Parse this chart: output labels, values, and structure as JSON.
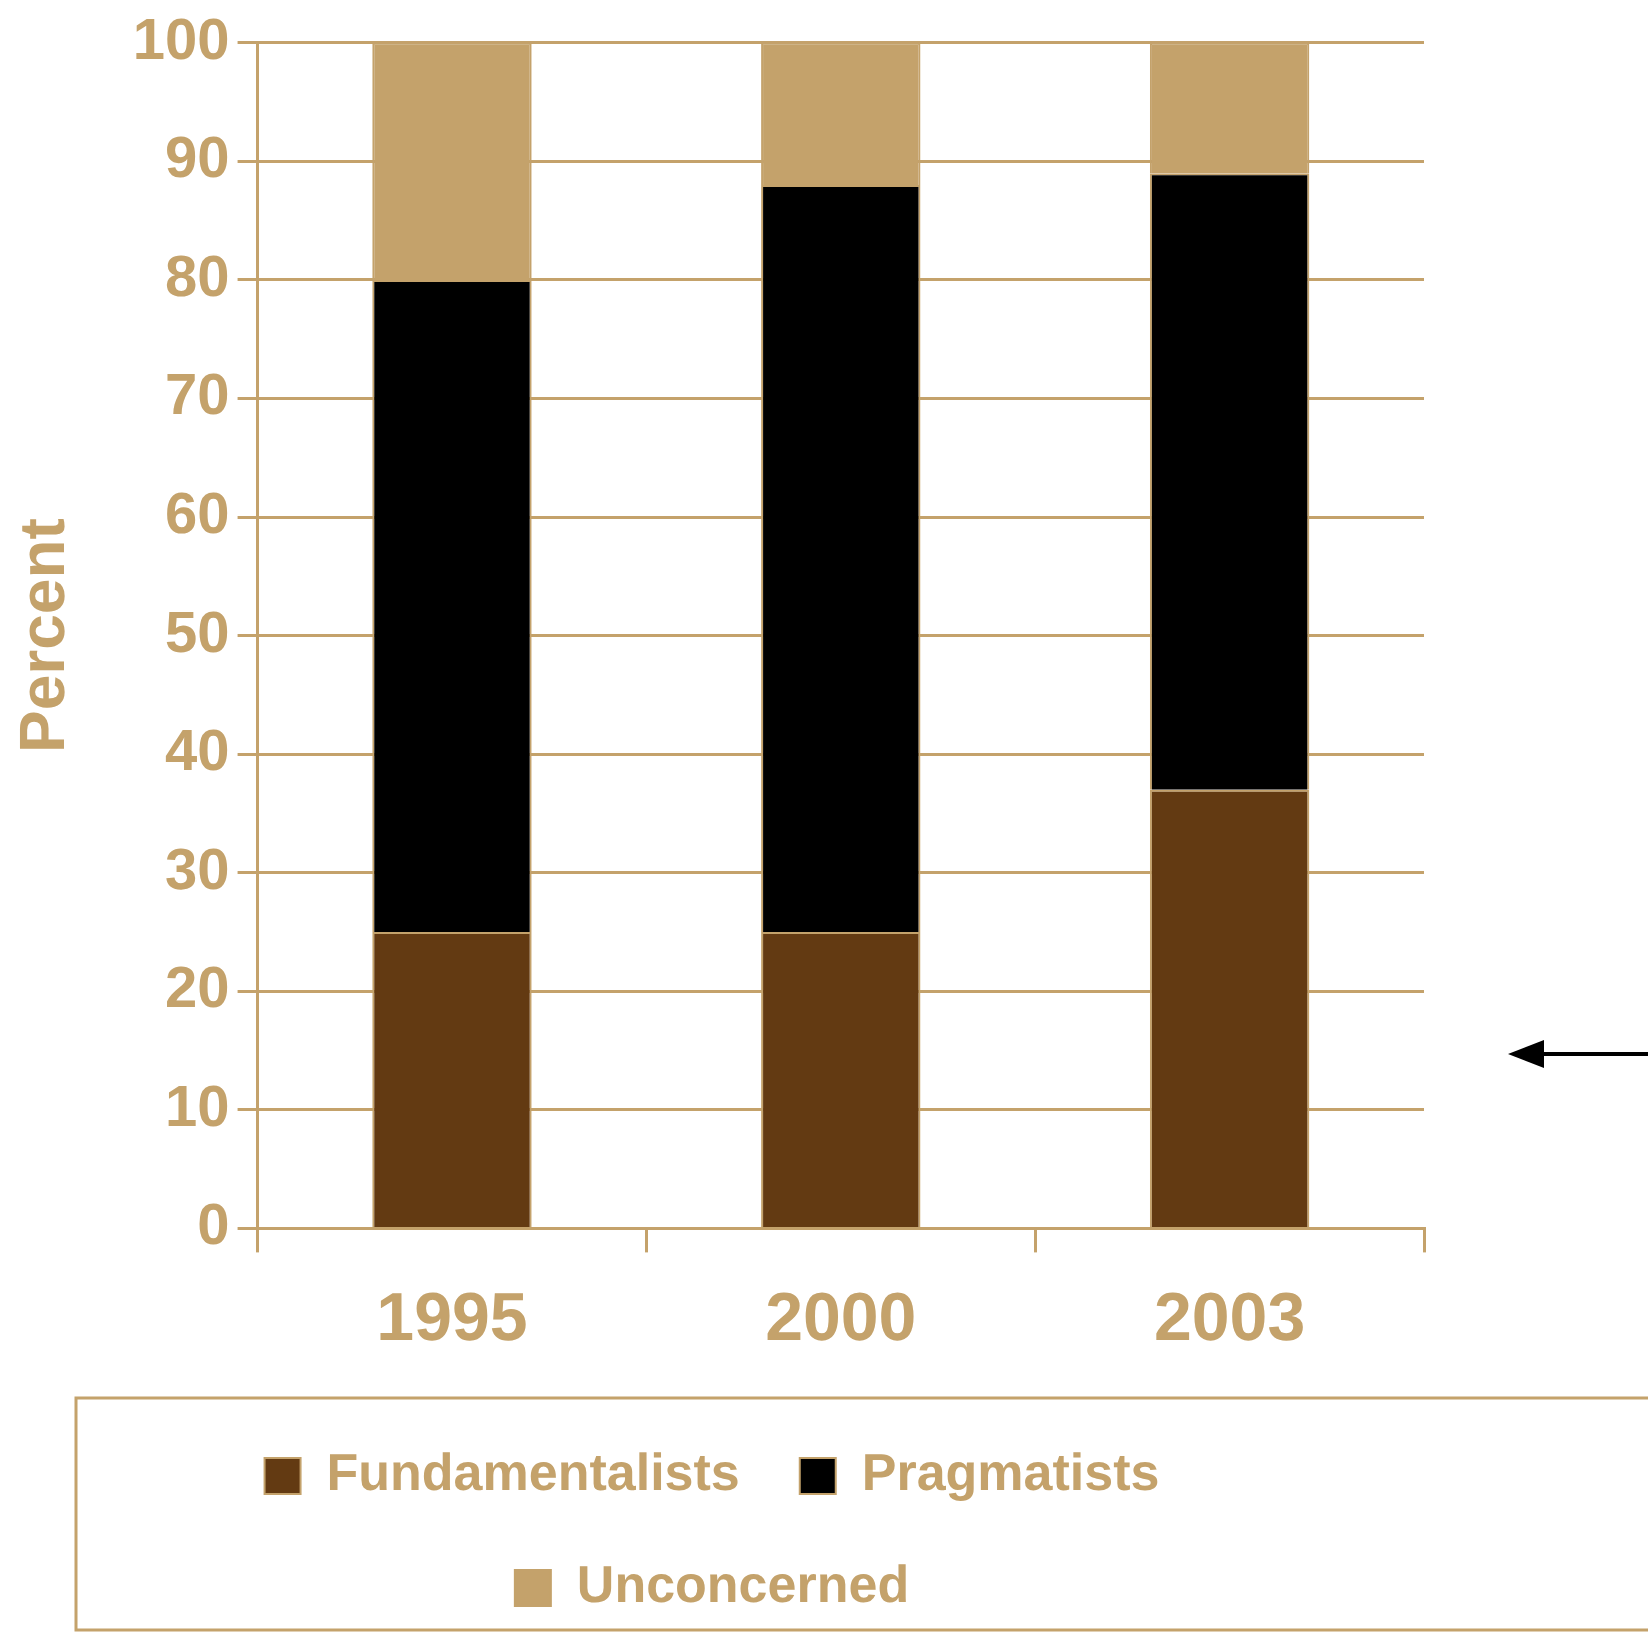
{
  "chart_data": {
    "type": "bar",
    "stacked": true,
    "ylabel": "Percent",
    "categories": [
      "1995",
      "2000",
      "2003"
    ],
    "series": [
      {
        "name": "Fundamentalists",
        "color": "#633a12",
        "values": [
          25,
          25,
          37
        ]
      },
      {
        "name": "Pragmatists",
        "color": "#000000",
        "values": [
          55,
          63,
          52
        ]
      },
      {
        "name": "Unconcerned",
        "color": "#c4a26b",
        "values": [
          20,
          12,
          11
        ]
      }
    ],
    "ylim": [
      0,
      100
    ],
    "yticks": [
      0,
      10,
      20,
      30,
      40,
      50,
      60,
      70,
      80,
      90,
      100
    ],
    "grid": "y",
    "legend": "bottom"
  }
}
